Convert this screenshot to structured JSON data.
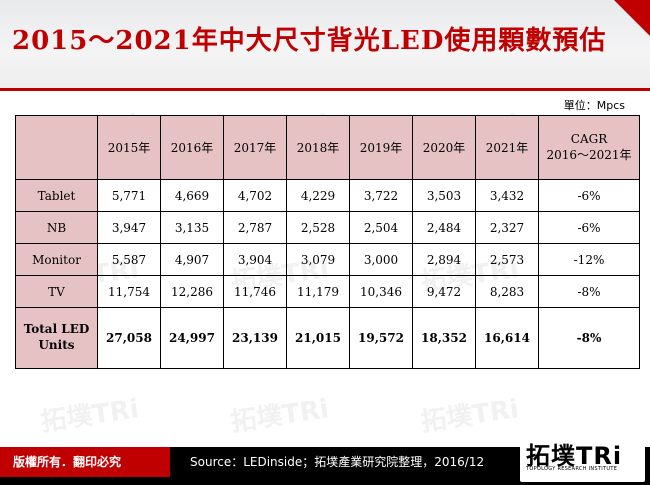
{
  "title": "2015～2021年中大尺寸背光LED使用顆數預估",
  "unit_label": "單位：Mpcs",
  "table": {
    "header": [
      "",
      "2015年",
      "2016年",
      "2017年",
      "2018年",
      "2019年",
      "2020年",
      "2021年",
      "CAGR\n2016～2021年"
    ],
    "rows": [
      {
        "label": "Tablet",
        "values": [
          "5,771",
          "4,669",
          "4,702",
          "4,229",
          "3,722",
          "3,503",
          "3,432",
          "-6%"
        ]
      },
      {
        "label": "NB",
        "values": [
          "3,947",
          "3,135",
          "2,787",
          "2,528",
          "2,504",
          "2,484",
          "2,327",
          "-6%"
        ]
      },
      {
        "label": "Monitor",
        "values": [
          "5,587",
          "4,907",
          "3,904",
          "3,079",
          "3,000",
          "2,894",
          "2,573",
          "-12%"
        ]
      },
      {
        "label": "TV",
        "values": [
          "11,754",
          "12,286",
          "11,746",
          "11,179",
          "10,346",
          "9,472",
          "8,283",
          "-8%"
        ]
      }
    ],
    "total": {
      "label": "Total LED\nUnits",
      "values": [
        "27,058",
        "24,997",
        "23,139",
        "21,015",
        "19,572",
        "18,352",
        "16,614",
        "-8%"
      ]
    }
  },
  "footer": {
    "rights": "版權所有．翻印必究",
    "source": "Source：LEDinside；拓墣產業研究院整理，2016/12"
  },
  "logo": {
    "main": "拓墣TRi",
    "sub": "TOPOLOGY RESEARCH INSTITUTE"
  },
  "watermark_text": "拓墣TRi",
  "colors": {
    "title": "#c00000",
    "header_fill": "#e7c2c4",
    "footer": "#000000",
    "accent": "#c00000"
  }
}
